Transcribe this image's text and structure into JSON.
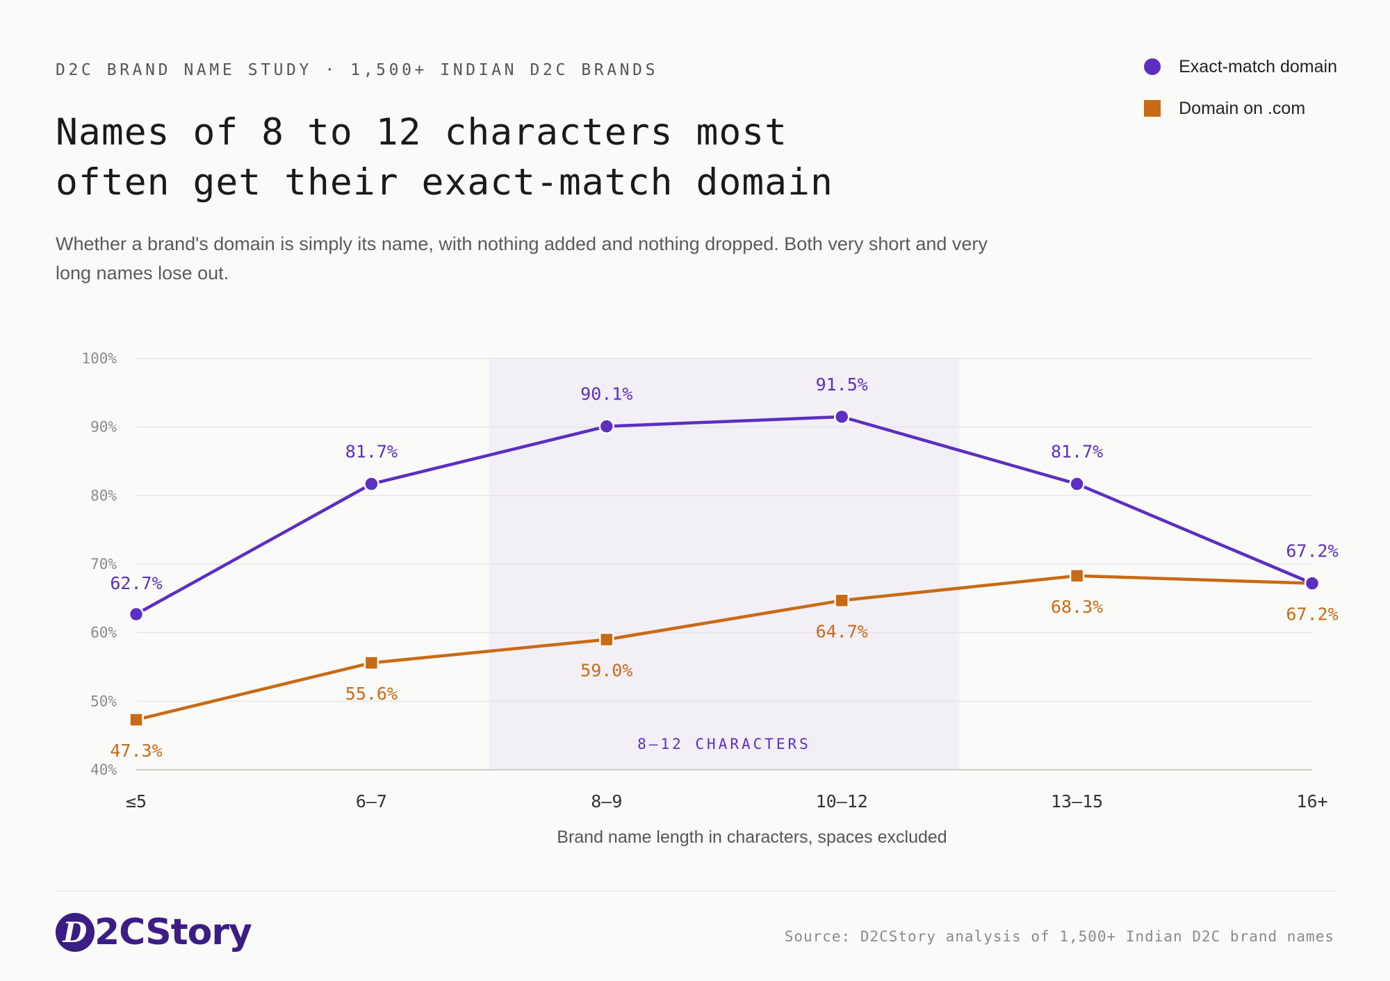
{
  "kicker": "D2C BRAND NAME STUDY · 1,500+ INDIAN D2C BRANDS",
  "title_line1": "Names of 8 to 12 characters most",
  "title_line2": "often get their exact-match domain",
  "subtitle": "Whether a brand's domain is simply its name, with nothing added and nothing dropped. Both very short and very long names lose out.",
  "legend": {
    "exact": "Exact-match domain",
    "com": "Domain on .com"
  },
  "colors": {
    "exact": "#5b2fc0",
    "com": "#c96a15",
    "highlight": "#f2eff7",
    "grid": "#e6e4e0",
    "axis_text": "#8a8a8a"
  },
  "chart_data": {
    "type": "line",
    "categories": [
      "≤5",
      "6–7",
      "8–9",
      "10–12",
      "13–15",
      "16+"
    ],
    "series": [
      {
        "name": "Exact-match domain",
        "values": [
          62.7,
          81.7,
          90.1,
          91.5,
          81.7,
          67.2
        ],
        "labels": [
          "62.7%",
          "81.7%",
          "90.1%",
          "91.5%",
          "81.7%",
          "67.2%"
        ]
      },
      {
        "name": "Domain on .com",
        "values": [
          47.3,
          55.6,
          59.0,
          64.7,
          68.3,
          67.2
        ],
        "labels": [
          "47.3%",
          "55.6%",
          "59.0%",
          "64.7%",
          "68.3%",
          "67.2%"
        ]
      }
    ],
    "ylim": [
      40,
      100
    ],
    "yticks": [
      40,
      50,
      60,
      70,
      80,
      90,
      100
    ],
    "ytick_labels": [
      "40%",
      "50%",
      "60%",
      "70%",
      "80%",
      "90%",
      "100%"
    ],
    "xlabel": "Brand name length in characters, spaces excluded",
    "highlight_label": "8–12 CHARACTERS",
    "highlight_range": [
      "8–9",
      "10–12"
    ],
    "grid": true,
    "legend_position": "top-right"
  },
  "footer": {
    "logo_mark": "D",
    "logo_text": "2CStory",
    "source": "Source: D2CStory analysis of 1,500+ Indian D2C brand names"
  }
}
